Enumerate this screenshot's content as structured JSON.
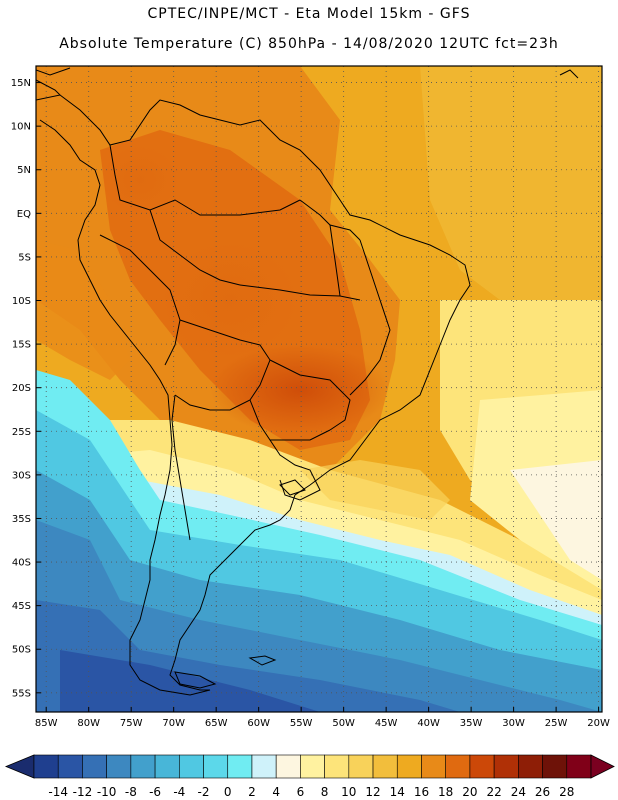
{
  "header": {
    "line1": "CPTEC/INPE/MCT -  Eta Model 15km - GFS",
    "line2": "Absolute Temperature (C) 850hPa - 14/08/2020 12UTC fct=23h"
  },
  "map": {
    "lat_labels": [
      "15N",
      "10N",
      "5N",
      "EQ",
      "5S",
      "10S",
      "15S",
      "20S",
      "25S",
      "30S",
      "35S",
      "40S",
      "45S",
      "50S",
      "55S"
    ],
    "lat_values": [
      15,
      10,
      5,
      0,
      -5,
      -10,
      -15,
      -20,
      -25,
      -30,
      -35,
      -40,
      -45,
      -50,
      -55
    ],
    "lon_labels": [
      "85W",
      "80W",
      "75W",
      "70W",
      "65W",
      "60W",
      "55W",
      "50W",
      "45W",
      "40W",
      "35W",
      "30W",
      "25W",
      "20W"
    ],
    "lon_values": [
      -85,
      -80,
      -75,
      -70,
      -65,
      -60,
      -55,
      -50,
      -45,
      -40,
      -35,
      -30,
      -25,
      -20
    ]
  },
  "colorbar": {
    "labels": [
      "-14",
      "-12",
      "-10",
      "-8",
      "-6",
      "-4",
      "-2",
      "0",
      "2",
      "4",
      "6",
      "8",
      "10",
      "12",
      "14",
      "16",
      "18",
      "20",
      "22",
      "24",
      "26",
      "28"
    ],
    "colors": [
      "#1f3f8f",
      "#2a55a5",
      "#3570b5",
      "#3d88c0",
      "#42a0cc",
      "#48b6d8",
      "#50c8e2",
      "#5cd8ea",
      "#70ecf2",
      "#cff2fa",
      "#fdf6e0",
      "#fff2a0",
      "#fde47a",
      "#f8d25a",
      "#f2be3c",
      "#eeaa20",
      "#e88a18",
      "#e06a10",
      "#cc4808",
      "#b03006",
      "#8e1e06",
      "#6e1208",
      "#800018"
    ],
    "under_color": "#1a2c6e",
    "over_color": "#7a0020"
  }
}
